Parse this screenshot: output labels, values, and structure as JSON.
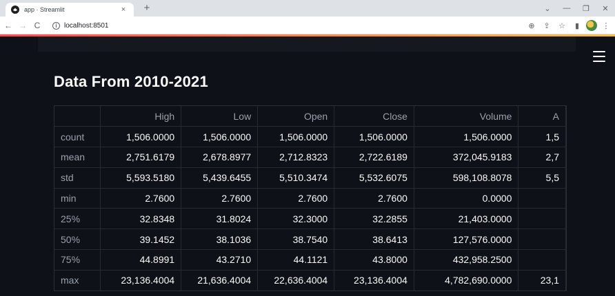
{
  "browser": {
    "tab_title": "app · Streamlit",
    "tab_close": "×",
    "new_tab": "+",
    "url": "localhost:8501",
    "win_minimize": "—",
    "win_restore": "❐",
    "win_close": "✕",
    "back_glyph": "←",
    "forward_glyph": "→",
    "reload_glyph": "C",
    "info_glyph": "i",
    "zoom_glyph": "⊕",
    "share_glyph": "⇪",
    "star_glyph": "☆",
    "sidepanel_glyph": "▮",
    "more_glyph": "⋮",
    "dropdown_glyph": "⌄"
  },
  "app": {
    "title": "Data From 2010-2021"
  },
  "table": {
    "columns": [
      "",
      "High",
      "Low",
      "Open",
      "Close",
      "Volume",
      "A"
    ],
    "rows": [
      [
        "count",
        "1,506.0000",
        "1,506.0000",
        "1,506.0000",
        "1,506.0000",
        "1,506.0000",
        "1,5"
      ],
      [
        "mean",
        "2,751.6179",
        "2,678.8977",
        "2,712.8323",
        "2,722.6189",
        "372,045.9183",
        "2,7"
      ],
      [
        "std",
        "5,593.5180",
        "5,439.6455",
        "5,510.3474",
        "5,532.6075",
        "598,108.8078",
        "5,5"
      ],
      [
        "min",
        "2.7600",
        "2.7600",
        "2.7600",
        "2.7600",
        "0.0000",
        ""
      ],
      [
        "25%",
        "32.8348",
        "31.8024",
        "32.3000",
        "32.2855",
        "21,403.0000",
        ""
      ],
      [
        "50%",
        "39.1452",
        "38.1036",
        "38.7540",
        "38.6413",
        "127,576.0000",
        ""
      ],
      [
        "75%",
        "44.8991",
        "43.2710",
        "44.1121",
        "43.8000",
        "432,958.2500",
        ""
      ],
      [
        "max",
        "23,136.4004",
        "21,636.4004",
        "22,636.4004",
        "23,136.4004",
        "4,782,690.0000",
        "23,1"
      ]
    ]
  },
  "colors": {
    "app_background": "#0e1117",
    "text": "#fafafa",
    "muted_text": "#9aa0ac",
    "accent_start": "#ff4b4b",
    "accent_end": "#ffbd45"
  }
}
